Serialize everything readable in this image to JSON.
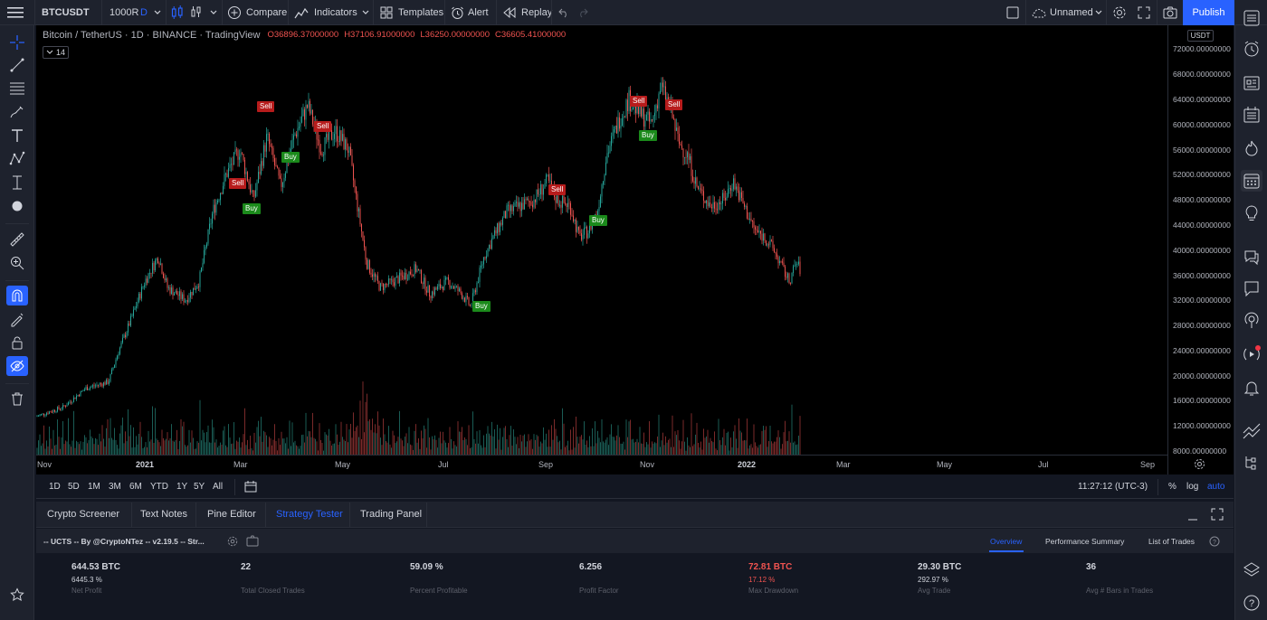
{
  "topbar": {
    "symbol": "BTCUSDT",
    "range": "1000R",
    "interval": "D",
    "compare": "Compare",
    "indicators": "Indicators",
    "templates": "Templates",
    "alert": "Alert",
    "replay": "Replay",
    "layout_name": "Unnamed",
    "publish": "Publish"
  },
  "legend": {
    "title": "Bitcoin / TetherUS · 1D · BINANCE · TradingView",
    "open": "O36896.37000000",
    "high": "H37106.91000000",
    "low": "L36250.00000000",
    "close": "C36605.41000000",
    "indicator_count": "14"
  },
  "price_axis": {
    "currency": "USDT",
    "labels": [
      "72000.00000000",
      "68000.00000000",
      "64000.00000000",
      "60000.00000000",
      "56000.00000000",
      "52000.00000000",
      "48000.00000000",
      "44000.00000000",
      "40000.00000000",
      "36000.00000000",
      "32000.00000000",
      "28000.00000000",
      "24000.00000000",
      "20000.00000000",
      "16000.00000000",
      "12000.00000000",
      "8000.00000000"
    ]
  },
  "time_axis": {
    "labels": [
      "Nov",
      "2021",
      "Mar",
      "May",
      "Jul",
      "Sep",
      "Nov",
      "2022",
      "Mar",
      "May",
      "Jul",
      "Sep"
    ]
  },
  "signals": [
    {
      "type": "Sell"
    },
    {
      "type": "Sell"
    },
    {
      "type": "Buy"
    },
    {
      "type": "Buy"
    },
    {
      "type": "Sell"
    },
    {
      "type": "Sell"
    },
    {
      "type": "Buy"
    },
    {
      "type": "Buy"
    },
    {
      "type": "Sell"
    },
    {
      "type": "Sell"
    },
    {
      "type": "Buy"
    }
  ],
  "range_bar": {
    "ranges": [
      "1D",
      "5D",
      "1M",
      "3M",
      "6M",
      "YTD",
      "1Y",
      "5Y",
      "All"
    ],
    "clock": "11:27:12 (UTC-3)",
    "percent": "%",
    "log": "log",
    "auto": "auto"
  },
  "panel_tabs": [
    "Crypto Screener",
    "Text Notes",
    "Pine Editor",
    "Strategy Tester",
    "Trading Panel"
  ],
  "strategy": {
    "name": "-- UCTS -- By @CryptoNTez -- v2.19.5 -- Str...",
    "tabs": [
      "Overview",
      "Performance Summary",
      "List of Trades"
    ]
  },
  "stats": [
    {
      "value": "644.53 BTC",
      "sub": "6445.3 %",
      "label": "Net Profit",
      "color": "#d1d4dc"
    },
    {
      "value": "22",
      "sub": "",
      "label": "Total Closed Trades",
      "color": "#d1d4dc"
    },
    {
      "value": "59.09 %",
      "sub": "",
      "label": "Percent Profitable",
      "color": "#d1d4dc"
    },
    {
      "value": "6.256",
      "sub": "",
      "label": "Profit Factor",
      "color": "#d1d4dc"
    },
    {
      "value": "72.81 BTC",
      "sub": "17.12 %",
      "label": "Max Drawdown",
      "color": "#ef5350"
    },
    {
      "value": "29.30 BTC",
      "sub": "292.97 %",
      "label": "Avg Trade",
      "color": "#d1d4dc"
    },
    {
      "value": "36",
      "sub": "",
      "label": "Avg # Bars in Trades",
      "color": "#d1d4dc"
    }
  ],
  "colors": {
    "accent": "#2962ff",
    "up": "#26a69a",
    "down": "#ef5350",
    "sell": "#b71c1c",
    "buy": "#1b8a1b"
  }
}
